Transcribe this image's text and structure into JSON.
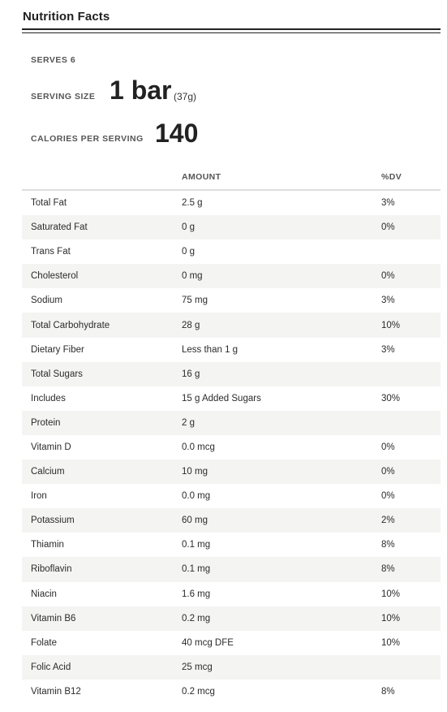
{
  "title": "Nutrition Facts",
  "serves": "SERVES 6",
  "serving_size": {
    "label": "SERVING SIZE",
    "value": "1 bar",
    "grams": "(37g)"
  },
  "calories": {
    "label": "CALORIES PER SERVING",
    "value": "140"
  },
  "columns": {
    "amount": "AMOUNT",
    "dv": "%DV"
  },
  "colors": {
    "shaded_row": "#f4f4f2",
    "rule": "#222222",
    "text": "#2b2b2b"
  },
  "nutrients": [
    {
      "name": "Total Fat",
      "amount": "2.5 g",
      "dv": "3%"
    },
    {
      "name": "Saturated Fat",
      "amount": "0 g",
      "dv": "0%"
    },
    {
      "name": "Trans Fat",
      "amount": "0 g",
      "dv": ""
    },
    {
      "name": "Cholesterol",
      "amount": "0 mg",
      "dv": "0%"
    },
    {
      "name": "Sodium",
      "amount": "75 mg",
      "dv": "3%"
    },
    {
      "name": "Total Carbohydrate",
      "amount": "28 g",
      "dv": "10%"
    },
    {
      "name": "Dietary Fiber",
      "amount": "Less than 1 g",
      "dv": "3%"
    },
    {
      "name": "Total Sugars",
      "amount": "16 g",
      "dv": ""
    },
    {
      "name": "Includes",
      "amount": "15 g Added Sugars",
      "dv": "30%"
    },
    {
      "name": "Protein",
      "amount": "2 g",
      "dv": ""
    },
    {
      "name": "Vitamin D",
      "amount": "0.0 mcg",
      "dv": "0%"
    },
    {
      "name": "Calcium",
      "amount": "10 mg",
      "dv": "0%"
    },
    {
      "name": "Iron",
      "amount": "0.0 mg",
      "dv": "0%"
    },
    {
      "name": "Potassium",
      "amount": "60 mg",
      "dv": "2%"
    },
    {
      "name": "Thiamin",
      "amount": "0.1 mg",
      "dv": "8%"
    },
    {
      "name": "Riboflavin",
      "amount": "0.1 mg",
      "dv": "8%"
    },
    {
      "name": "Niacin",
      "amount": "1.6 mg",
      "dv": "10%"
    },
    {
      "name": "Vitamin B6",
      "amount": "0.2 mg",
      "dv": "10%"
    },
    {
      "name": "Folate",
      "amount": "40 mcg DFE",
      "dv": "10%"
    },
    {
      "name": "Folic Acid",
      "amount": "25 mcg",
      "dv": ""
    },
    {
      "name": "Vitamin B12",
      "amount": "0.2 mcg",
      "dv": "8%"
    }
  ]
}
